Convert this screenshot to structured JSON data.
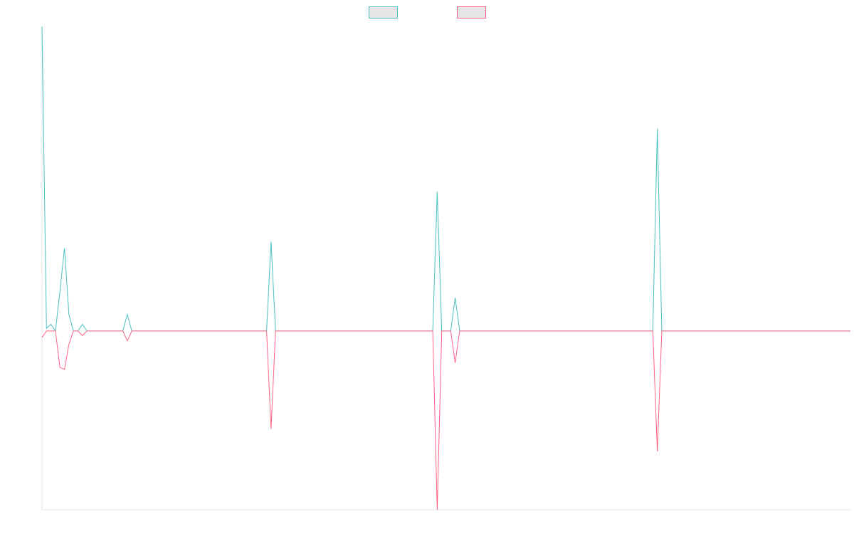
{
  "chart_data": {
    "type": "line",
    "title": "",
    "xlabel": "",
    "ylabel": "",
    "x": [
      0,
      1,
      2,
      3,
      4,
      5,
      6,
      7,
      8,
      9,
      10,
      11,
      12,
      13,
      14,
      15,
      16,
      17,
      18,
      19,
      20,
      21,
      22,
      23,
      24,
      25,
      26,
      27,
      28,
      29,
      30,
      31,
      32,
      33,
      34,
      35,
      36,
      37,
      38,
      39,
      40,
      41,
      42,
      43,
      44,
      45,
      46,
      47,
      48,
      49,
      50,
      51,
      52,
      53,
      54,
      55,
      56,
      57,
      58,
      59,
      60,
      61,
      62,
      63,
      64,
      65,
      66,
      67,
      68,
      69,
      70,
      71,
      72,
      73,
      74,
      75,
      76,
      77,
      78,
      79,
      80,
      81,
      82,
      83,
      84,
      85,
      86,
      87,
      88,
      89,
      90,
      91,
      92,
      93,
      94,
      95,
      96,
      97,
      98,
      99,
      100,
      101,
      102,
      103,
      104,
      105,
      106,
      107,
      108,
      109,
      110,
      111,
      112,
      113,
      114,
      115,
      116,
      117,
      118,
      119,
      120,
      121,
      122,
      123,
      124,
      125,
      126,
      127,
      128,
      129,
      130,
      131,
      132,
      133,
      134,
      135,
      136,
      137,
      138,
      139,
      140,
      141,
      142,
      143,
      144,
      145,
      146,
      147,
      148,
      149,
      150,
      151,
      152,
      153,
      154,
      155,
      156,
      157,
      158,
      159,
      160,
      161,
      162,
      163,
      164,
      165,
      166,
      167,
      168,
      169,
      170,
      171,
      172,
      173,
      174,
      175,
      176,
      177,
      178,
      179,
      180
    ],
    "ylim": [
      -27,
      46
    ],
    "grid": false,
    "legend_position": "top-center",
    "series": [
      {
        "color": "#4bc0c0",
        "fill": "#e6e6e6",
        "values": [
          46,
          0.4,
          1,
          0,
          6,
          12.5,
          2.5,
          0,
          0,
          1,
          0,
          0,
          0,
          0,
          0,
          0,
          0,
          0,
          0,
          2.5,
          0,
          0,
          0,
          0,
          0,
          0,
          0,
          0,
          0,
          0,
          0,
          0,
          0,
          0,
          0,
          0,
          0,
          0,
          0,
          0,
          0,
          0,
          0,
          0,
          0,
          0,
          0,
          0,
          0,
          0,
          0,
          0,
          0,
          0,
          0,
          0,
          0,
          0,
          0,
          0,
          0,
          0,
          0,
          0,
          0,
          0,
          0,
          0,
          0,
          0,
          0,
          0,
          0,
          0,
          0,
          0,
          0,
          0,
          0,
          0,
          0,
          0,
          0,
          0,
          0,
          0,
          0,
          0,
          0,
          0,
          0,
          0,
          0,
          0,
          0,
          0,
          0,
          0,
          0,
          0,
          0,
          0,
          0,
          0,
          0,
          0,
          0,
          0,
          0,
          0,
          0,
          0,
          0,
          0,
          0,
          0,
          0,
          0,
          0,
          0,
          0,
          0,
          0,
          0,
          0,
          0,
          0,
          0,
          0,
          0,
          0,
          0,
          0,
          0,
          0,
          0,
          0,
          0,
          0,
          0,
          0,
          0,
          0,
          0,
          0,
          0,
          0,
          0,
          0,
          0,
          0,
          0,
          0,
          0,
          0,
          0,
          0,
          0,
          0,
          0,
          0,
          0,
          0,
          0,
          0,
          0,
          0,
          0,
          0,
          0,
          0,
          0,
          0,
          0,
          0,
          0,
          0,
          0,
          0,
          0,
          0
        ]
      },
      {
        "color": "#ff6384",
        "fill": "#e6e6e6",
        "values": [
          -1,
          0,
          0,
          0,
          -5.5,
          -5.8,
          -2,
          0,
          0,
          -0.7,
          0,
          0,
          0,
          0,
          0,
          0,
          0,
          0,
          0,
          -1.5,
          0,
          0,
          0,
          0,
          0,
          0,
          0,
          0,
          0,
          0,
          0,
          0,
          0,
          0,
          0,
          0,
          0,
          0,
          0,
          0,
          0,
          0,
          0,
          0,
          0,
          0,
          0,
          0,
          0,
          0,
          0,
          0,
          0,
          0,
          0,
          0,
          0,
          0,
          0,
          0,
          0,
          0,
          0,
          0,
          0,
          0,
          0,
          0,
          0,
          0,
          0,
          0,
          0,
          0,
          0,
          0,
          0,
          0,
          0,
          0,
          0,
          0,
          0,
          0,
          0,
          0,
          0,
          0,
          0,
          0,
          0,
          0,
          0,
          0,
          0,
          0,
          0,
          0,
          0,
          0,
          0,
          0,
          0,
          0,
          0,
          0,
          0,
          0,
          0,
          0,
          0,
          0,
          0,
          0,
          0,
          0,
          0,
          0,
          0,
          0,
          0,
          0,
          0,
          0,
          0,
          0,
          0,
          0,
          0,
          0,
          0,
          0,
          0,
          0,
          0,
          0,
          0,
          0,
          0,
          0,
          0,
          0,
          0,
          0,
          0,
          0,
          0,
          0,
          0,
          0,
          0,
          0,
          0,
          0,
          0,
          0,
          0,
          0,
          0,
          0,
          0,
          0,
          0,
          0,
          0,
          0,
          0,
          0,
          0,
          0,
          0,
          0,
          0,
          0,
          0,
          0,
          0,
          0,
          0,
          0,
          0
        ]
      }
    ],
    "spikes": [
      {
        "series": 0,
        "x": 51,
        "y": 13.5
      },
      {
        "series": 1,
        "x": 51,
        "y": -14.8
      },
      {
        "series": 0,
        "x": 88,
        "y": 21
      },
      {
        "series": 1,
        "x": 88,
        "y": -27
      },
      {
        "series": 0,
        "x": 92,
        "y": 5
      },
      {
        "series": 1,
        "x": 92,
        "y": -4.8
      },
      {
        "series": 0,
        "x": 137,
        "y": 30.5
      },
      {
        "series": 1,
        "x": 137,
        "y": -18.2
      }
    ]
  }
}
